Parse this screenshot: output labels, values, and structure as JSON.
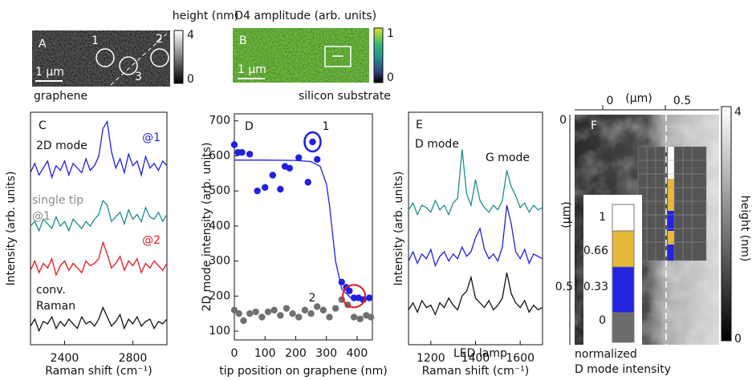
{
  "chart_data": [
    {
      "type": "line",
      "panel": "C",
      "xlabel": "Raman shift (cm⁻¹)",
      "ylabel": "Intensity (arb. units)",
      "x": [
        2200,
        2225,
        2250,
        2275,
        2300,
        2325,
        2350,
        2375,
        2400,
        2425,
        2450,
        2475,
        2500,
        2525,
        2550,
        2575,
        2600,
        2625,
        2650,
        2675,
        2700,
        2725,
        2750,
        2775,
        2800,
        2825,
        2850,
        2875,
        2900,
        2925,
        2950,
        2975,
        3000
      ],
      "xlim": [
        2200,
        3000
      ],
      "xticks": [
        2400,
        2800
      ],
      "ylim": [
        0,
        10
      ],
      "series": [
        {
          "color": "#1f1fe6",
          "values": [
            7.4,
            7.8,
            7.3,
            7.6,
            7.9,
            7.2,
            7.7,
            7.5,
            7.9,
            7.3,
            7.8,
            7.6,
            7.4,
            8.0,
            7.5,
            7.7,
            8.1,
            9.3,
            9.6,
            8.3,
            7.6,
            8.0,
            7.4,
            8.2,
            7.7,
            7.9,
            7.3,
            8.1,
            7.6,
            7.8,
            7.5,
            7.9,
            7.7
          ]
        },
        {
          "color": "#1a8f8a",
          "values": [
            5.1,
            5.3,
            4.9,
            5.4,
            5.2,
            5.0,
            5.5,
            5.1,
            5.3,
            4.9,
            5.4,
            5.2,
            5.0,
            5.3,
            5.1,
            5.4,
            5.6,
            6.2,
            6.0,
            5.3,
            5.5,
            5.7,
            5.2,
            5.8,
            5.4,
            5.6,
            5.3,
            5.9,
            5.5,
            5.4,
            5.7,
            5.3,
            5.6
          ]
        },
        {
          "color": "#e8161b",
          "values": [
            3.2,
            3.6,
            3.1,
            3.5,
            3.3,
            3.7,
            3.0,
            3.4,
            3.6,
            3.2,
            3.5,
            3.3,
            3.1,
            3.6,
            3.4,
            3.5,
            3.7,
            4.4,
            3.9,
            3.3,
            3.5,
            3.8,
            3.2,
            3.6,
            3.4,
            3.7,
            3.1,
            3.5,
            3.3,
            3.6,
            3.4,
            3.2,
            3.5
          ]
        },
        {
          "color": "#111111",
          "values": [
            0.8,
            1.1,
            0.6,
            1.0,
            0.9,
            1.2,
            0.7,
            1.0,
            0.8,
            1.1,
            0.9,
            0.7,
            1.2,
            0.9,
            1.0,
            0.8,
            1.1,
            1.6,
            1.2,
            0.8,
            1.0,
            1.3,
            0.7,
            1.1,
            0.9,
            1.2,
            0.8,
            1.0,
            1.1,
            0.7,
            1.0,
            0.9,
            1.1
          ]
        }
      ],
      "annotations": [
        {
          "text": "2D mode",
          "color": "#111111"
        },
        {
          "text": "@1",
          "color": "#1f1fe6"
        },
        {
          "text": "single tip",
          "color": "#8a8a8a"
        },
        {
          "text": "@1",
          "color": "#8a8a8a"
        },
        {
          "text": "@2",
          "color": "#e8161b"
        },
        {
          "text": "conv.",
          "color": "#111111"
        },
        {
          "text": "Raman",
          "color": "#111111"
        }
      ]
    },
    {
      "type": "scatter",
      "panel": "D",
      "xlabel": "tip position on graphene (nm)",
      "ylabel": "2D mode intensity (arb. units)",
      "xlim": [
        0,
        450
      ],
      "xticks": [
        0,
        100,
        200,
        300,
        400
      ],
      "ylim": [
        75,
        720
      ],
      "yticks": [
        100,
        200,
        300,
        400,
        500,
        600,
        700
      ],
      "series": [
        {
          "color": "#1f1fe6",
          "x": [
            0,
            12,
            25,
            50,
            75,
            100,
            125,
            150,
            165,
            180,
            210,
            240,
            255,
            270,
            350,
            365,
            375,
            390,
            405,
            420,
            440
          ],
          "values": [
            632,
            610,
            610,
            605,
            500,
            510,
            545,
            505,
            570,
            565,
            595,
            525,
            640,
            590,
            240,
            225,
            215,
            195,
            195,
            190,
            195
          ]
        },
        {
          "color": "#707070",
          "x": [
            0,
            15,
            30,
            50,
            70,
            90,
            110,
            130,
            150,
            170,
            190,
            210,
            230,
            250,
            270,
            290,
            310,
            330,
            350,
            370,
            390,
            410,
            430,
            445
          ],
          "values": [
            160,
            150,
            130,
            150,
            155,
            140,
            155,
            160,
            145,
            165,
            150,
            140,
            160,
            150,
            170,
            160,
            140,
            165,
            190,
            175,
            140,
            135,
            145,
            140
          ]
        },
        {
          "color": "#1f1fe6",
          "mode": "line",
          "x": [
            0,
            100,
            200,
            250,
            280,
            300,
            310,
            320,
            330,
            350,
            380,
            450
          ],
          "values": [
            588,
            588,
            587,
            584,
            570,
            520,
            460,
            380,
            300,
            220,
            195,
            192
          ]
        }
      ],
      "annotations": [
        {
          "text": "1",
          "color": "#111111"
        },
        {
          "text": "2",
          "color": "#111111"
        }
      ]
    },
    {
      "type": "line",
      "panel": "E",
      "xlabel": "Raman shift (cm⁻¹)",
      "ylabel": "Intensity (arb. units)",
      "x": [
        1100,
        1120,
        1140,
        1160,
        1180,
        1200,
        1220,
        1240,
        1260,
        1280,
        1300,
        1320,
        1340,
        1360,
        1380,
        1400,
        1420,
        1440,
        1460,
        1480,
        1500,
        1520,
        1540,
        1560,
        1580,
        1600,
        1620,
        1640,
        1660,
        1680,
        1700
      ],
      "xlim": [
        1100,
        1700
      ],
      "xticks": [
        1200,
        1400,
        1600
      ],
      "ylim": [
        0,
        10
      ],
      "series": [
        {
          "color": "#1a8f8a",
          "values": [
            5.8,
            6.1,
            5.6,
            6.0,
            5.9,
            5.7,
            6.2,
            5.8,
            6.0,
            5.6,
            6.1,
            6.3,
            8.4,
            6.5,
            6.0,
            7.1,
            6.2,
            5.9,
            5.7,
            6.0,
            5.8,
            6.2,
            7.5,
            6.8,
            6.4,
            5.9,
            6.1,
            5.7,
            6.0,
            5.8,
            5.9
          ]
        },
        {
          "color": "#1f1fe6",
          "values": [
            3.6,
            4.0,
            3.5,
            3.9,
            3.7,
            4.1,
            3.4,
            3.8,
            4.0,
            3.6,
            3.9,
            3.7,
            4.2,
            3.8,
            4.0,
            4.6,
            5.0,
            4.1,
            3.7,
            3.9,
            3.6,
            4.2,
            6.0,
            5.2,
            4.0,
            3.7,
            4.1,
            3.5,
            3.9,
            3.8,
            3.7
          ]
        },
        {
          "color": "#111111",
          "values": [
            1.5,
            1.8,
            1.4,
            1.9,
            1.6,
            1.7,
            1.3,
            1.8,
            1.6,
            2.0,
            1.7,
            1.5,
            2.1,
            2.3,
            2.9,
            2.0,
            1.8,
            1.6,
            1.9,
            1.5,
            1.7,
            2.0,
            3.1,
            2.2,
            1.8,
            1.6,
            1.9,
            1.4,
            1.7,
            1.5,
            1.6
          ]
        }
      ],
      "annotations": [
        {
          "text": "D mode",
          "color": "#111111"
        },
        {
          "text": "G mode",
          "color": "#111111"
        },
        {
          "text": "LED lamp",
          "color": "#111111"
        }
      ]
    }
  ],
  "images": {
    "a": {
      "label": "A",
      "title": "height (nm)",
      "colorbar_ticks": [
        4,
        0
      ],
      "scale_bar": "1 µm",
      "caption": "graphene",
      "spots": [
        "1",
        "2",
        "3"
      ]
    },
    "b": {
      "label": "B",
      "title": "O4 amplitude (arb. units)",
      "colorbar_ticks": [
        1,
        0
      ],
      "scale_bar": "1 µm",
      "caption": "silicon substrate"
    },
    "f": {
      "label": "F",
      "top_ticks": [
        0,
        0.5
      ],
      "top_unit": "(µm)",
      "left_ticks": [
        0,
        0.5
      ],
      "left_unit": "(µm)",
      "colorbar_ticks": [
        4,
        0
      ],
      "colorbar_label": "height (nm)",
      "inset_ticks": [
        1,
        0.66,
        0.33,
        0
      ],
      "inset_caption": [
        "normalized",
        "D mode intensity"
      ]
    }
  }
}
